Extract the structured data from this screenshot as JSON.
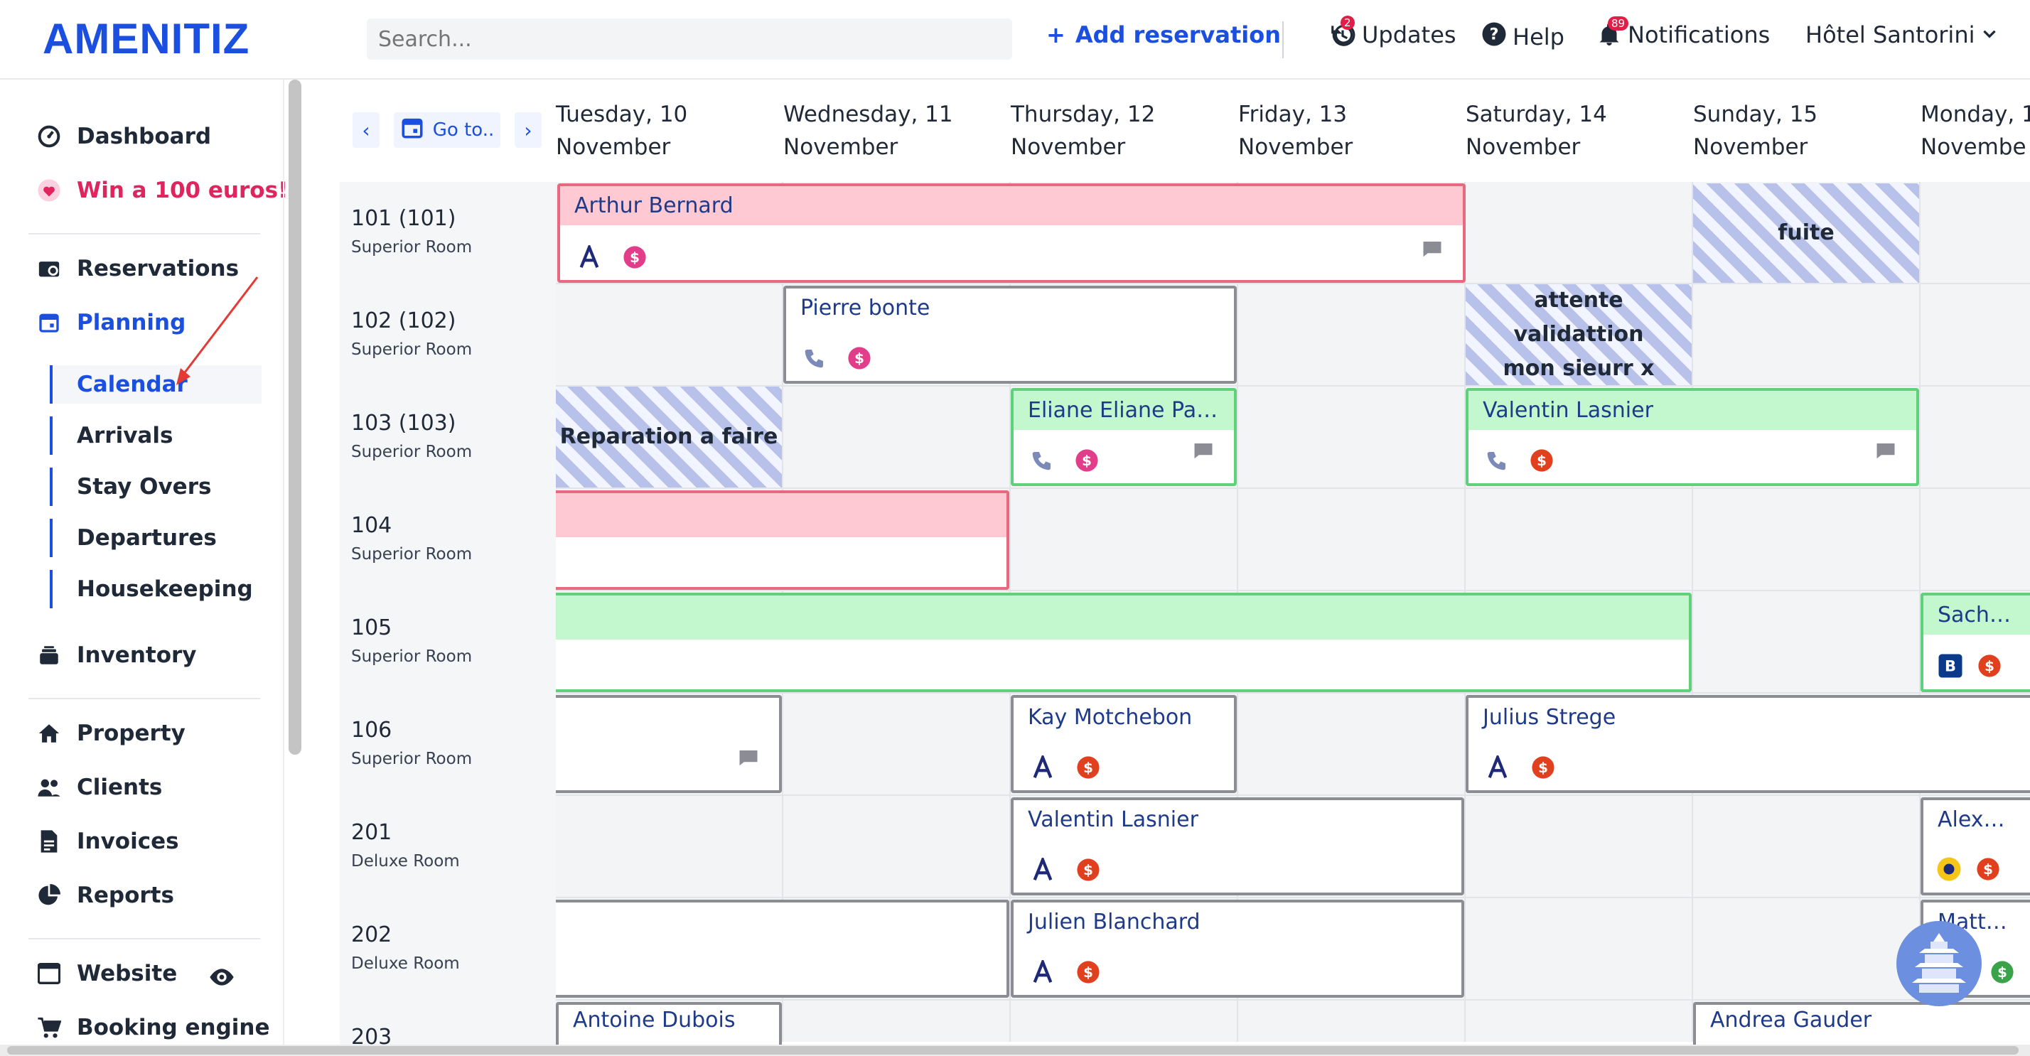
{
  "brand": {
    "logo": "AMENITIZ",
    "accent": "#1b4fe0"
  },
  "topbar": {
    "search_placeholder": "Search...",
    "add_reservation": "Add reservation",
    "updates": "Updates",
    "updates_badge": "2",
    "help": "Help",
    "notifications": "Notifications",
    "notifications_badge": "89",
    "hotel": "Hôtel Santorini"
  },
  "sidebar": {
    "dashboard": "Dashboard",
    "win": "Win a 100 euros!",
    "reservations": "Reservations",
    "planning": "Planning",
    "calendar": "Calendar",
    "arrivals": "Arrivals",
    "stay_overs": "Stay Overs",
    "departures": "Departures",
    "housekeeping": "Housekeeping",
    "inventory": "Inventory",
    "property": "Property",
    "clients": "Clients",
    "invoices": "Invoices",
    "reports": "Reports",
    "website": "Website",
    "booking_engine": "Booking engine"
  },
  "calendar": {
    "goto": "Go to..",
    "days": [
      {
        "l1": "Tuesday, 10",
        "l2": "November"
      },
      {
        "l1": "Wednesday, 11",
        "l2": "November"
      },
      {
        "l1": "Thursday, 12",
        "l2": "November"
      },
      {
        "l1": "Friday, 13",
        "l2": "November"
      },
      {
        "l1": "Saturday, 14",
        "l2": "November"
      },
      {
        "l1": "Sunday, 15",
        "l2": "November"
      },
      {
        "l1": "Monday, 1",
        "l2": "Novembe"
      }
    ],
    "rooms": [
      {
        "num": "101 (101)",
        "type": "Superior Room"
      },
      {
        "num": "102 (102)",
        "type": "Superior Room"
      },
      {
        "num": "103 (103)",
        "type": "Superior Room"
      },
      {
        "num": "104",
        "type": "Superior Room"
      },
      {
        "num": "105",
        "type": "Superior Room"
      },
      {
        "num": "106",
        "type": "Superior Room"
      },
      {
        "num": "201",
        "type": "Deluxe Room"
      },
      {
        "num": "202",
        "type": "Deluxe Room"
      },
      {
        "num": "203",
        "type": ""
      }
    ],
    "blocks": {
      "fuite": "fuite",
      "attente_l1": "attente validattion",
      "attente_l2": "mon sieurr x",
      "reparation": "Reparation a faire"
    },
    "reservations": {
      "arthur": "Arthur Bernard",
      "pierre": "Pierre bonte",
      "eliane": "Eliane Eliane Pae...",
      "valentin1": "Valentin Lasnier",
      "sacha": "Sacha C",
      "kay": "Kay Motchebon",
      "julius": "Julius Strege",
      "valentin2": "Valentin Lasnier",
      "alexand": "Alexand",
      "julien": "Julien Blanchard",
      "matteo": "Mattéo D",
      "antoine": "Antoine Dubois",
      "andrea": "Andrea Gauder"
    },
    "colors": {
      "pink_header": "#ffc9d3",
      "pink_border": "#e8697f",
      "green_header": "#c3f7cd",
      "green_border": "#5fd17a",
      "gray_border": "#8c8c94"
    }
  }
}
